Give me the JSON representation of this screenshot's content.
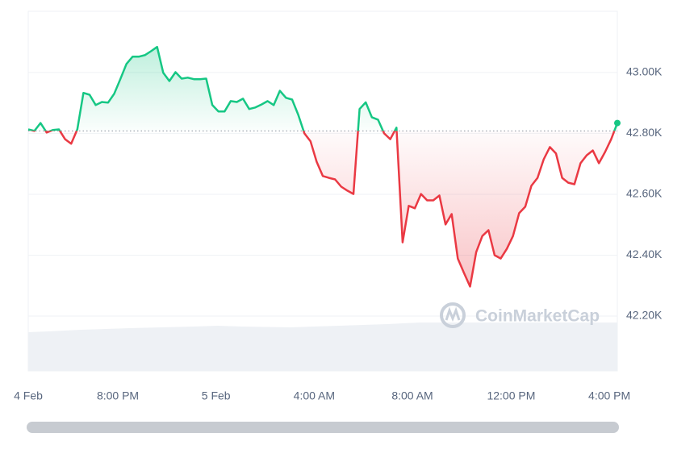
{
  "chart_data": {
    "type": "line",
    "values": [
      42813,
      42808,
      42834,
      42803,
      42811,
      42813,
      42781,
      42766,
      42813,
      42933,
      42927,
      42893,
      42903,
      42901,
      42930,
      42978,
      43028,
      43052,
      43052,
      43057,
      43070,
      43084,
      42999,
      42972,
      43001,
      42980,
      42983,
      42978,
      42978,
      42980,
      42893,
      42872,
      42872,
      42906,
      42903,
      42914,
      42880,
      42885,
      42895,
      42906,
      42893,
      42940,
      42917,
      42911,
      42861,
      42800,
      42774,
      42707,
      42660,
      42654,
      42649,
      42625,
      42612,
      42601,
      42880,
      42902,
      42853,
      42845,
      42800,
      42781,
      42819,
      42442,
      42562,
      42554,
      42601,
      42580,
      42580,
      42596,
      42501,
      42535,
      42389,
      42342,
      42297,
      42410,
      42463,
      42482,
      42400,
      42389,
      42421,
      42463,
      42538,
      42559,
      42628,
      42654,
      42715,
      42755,
      42734,
      42654,
      42638,
      42633,
      42702,
      42728,
      42744,
      42702,
      42739,
      42781,
      42834
    ],
    "baseline": 42808,
    "up_color": "#16c784",
    "down_color": "#ea3943",
    "xlim": [
      0,
      96
    ],
    "xticks": [
      {
        "value": 0,
        "label": "4 Feb"
      },
      {
        "value": 14.6,
        "label": "8:00 PM"
      },
      {
        "value": 30.6,
        "label": "5 Feb"
      },
      {
        "value": 46.6,
        "label": "4:00 AM"
      },
      {
        "value": 62.6,
        "label": "8:00 AM"
      },
      {
        "value": 78.7,
        "label": "12:00 PM"
      },
      {
        "value": 94.7,
        "label": "4:00 PM"
      }
    ],
    "ylim": [
      42020,
      43201
    ],
    "yticks": [
      {
        "value": 43000,
        "label": "43.00K"
      },
      {
        "value": 42800,
        "label": "42.80K"
      },
      {
        "value": 42600,
        "label": "42.60K"
      },
      {
        "value": 42400,
        "label": "42.40K"
      },
      {
        "value": 42200,
        "label": "42.20K"
      }
    ],
    "grid": true,
    "watermark": "CoinMarketCap"
  }
}
